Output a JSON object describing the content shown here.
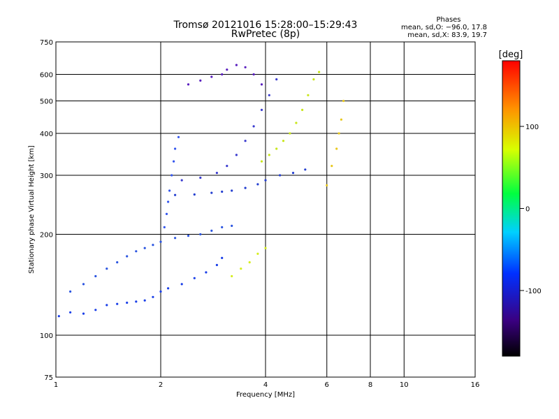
{
  "header": {
    "title_line1": "Tromsø 20121016 15:28:00–15:29:43",
    "title_line2": "RwPretec (8p)"
  },
  "stats": {
    "heading": "Phases",
    "line_o": "mean, sd,O: −96.0, 17.8",
    "line_x": "mean, sd,X: 83.9, 19.7"
  },
  "chart_data": {
    "type": "scatter",
    "xlabel": "Frequency [MHz]",
    "ylabel": "Stationary phase Virtual Height [km]",
    "x_scale": "log",
    "y_scale": "log",
    "xlim": [
      1,
      16
    ],
    "ylim": [
      75,
      750
    ],
    "x_ticks": [
      1,
      2,
      4,
      6,
      8,
      10,
      16
    ],
    "y_ticks": [
      75,
      100,
      200,
      300,
      400,
      500,
      600,
      750
    ],
    "grid": true,
    "colorbar": {
      "label": "[deg]",
      "range": [
        -180,
        180
      ],
      "ticks": [
        100,
        0,
        -100
      ]
    },
    "traces": [
      {
        "name": "o-low",
        "color": "#1a3fe8",
        "phase": -100,
        "points": [
          [
            1.02,
            114
          ],
          [
            1.1,
            117
          ],
          [
            1.2,
            116
          ],
          [
            1.3,
            119
          ],
          [
            1.4,
            123
          ],
          [
            1.5,
            124
          ],
          [
            1.6,
            125
          ],
          [
            1.7,
            126
          ],
          [
            1.8,
            127
          ],
          [
            1.9,
            130
          ],
          [
            2.0,
            135
          ],
          [
            2.1,
            138
          ],
          [
            2.3,
            142
          ],
          [
            2.5,
            148
          ],
          [
            2.7,
            154
          ],
          [
            2.9,
            162
          ],
          [
            3.0,
            170
          ]
        ]
      },
      {
        "name": "o-cloud-lower",
        "color": "#2b55e0",
        "phase": -105,
        "points": [
          [
            1.1,
            135
          ],
          [
            1.2,
            142
          ],
          [
            1.3,
            150
          ],
          [
            1.4,
            158
          ],
          [
            1.5,
            165
          ],
          [
            1.6,
            172
          ],
          [
            1.7,
            178
          ],
          [
            1.8,
            182
          ],
          [
            1.9,
            186
          ],
          [
            2.0,
            190
          ],
          [
            2.2,
            195
          ],
          [
            2.4,
            198
          ],
          [
            2.6,
            200
          ],
          [
            2.8,
            205
          ],
          [
            3.0,
            210
          ],
          [
            3.2,
            212
          ]
        ]
      },
      {
        "name": "o-vertical-2mhz",
        "color": "#3355ee",
        "phase": -110,
        "points": [
          [
            2.05,
            210
          ],
          [
            2.08,
            230
          ],
          [
            2.1,
            250
          ],
          [
            2.12,
            270
          ],
          [
            2.15,
            300
          ],
          [
            2.18,
            330
          ],
          [
            2.2,
            360
          ],
          [
            2.25,
            390
          ]
        ]
      },
      {
        "name": "o-mid",
        "color": "#2540d0",
        "phase": -112,
        "points": [
          [
            2.2,
            262
          ],
          [
            2.5,
            263
          ],
          [
            2.8,
            266
          ],
          [
            3.0,
            268
          ],
          [
            3.2,
            270
          ],
          [
            3.5,
            275
          ],
          [
            3.8,
            282
          ],
          [
            4.0,
            290
          ],
          [
            4.4,
            300
          ],
          [
            4.8,
            305
          ],
          [
            5.2,
            312
          ]
        ]
      },
      {
        "name": "o-mid-upper",
        "color": "#3b3ccf",
        "phase": -120,
        "points": [
          [
            2.3,
            290
          ],
          [
            2.6,
            295
          ],
          [
            2.9,
            305
          ],
          [
            3.1,
            320
          ],
          [
            3.3,
            345
          ],
          [
            3.5,
            380
          ],
          [
            3.7,
            420
          ],
          [
            3.9,
            470
          ],
          [
            4.1,
            520
          ],
          [
            4.3,
            580
          ]
        ]
      },
      {
        "name": "o-top-violet",
        "color": "#5a1fbf",
        "phase": -135,
        "points": [
          [
            2.4,
            560
          ],
          [
            2.6,
            575
          ],
          [
            2.8,
            590
          ],
          [
            3.0,
            600
          ],
          [
            3.1,
            620
          ],
          [
            3.3,
            640
          ],
          [
            3.5,
            630
          ],
          [
            3.7,
            600
          ],
          [
            3.9,
            560
          ]
        ]
      },
      {
        "name": "x-yellow",
        "color": "#c8e61a",
        "phase": 95,
        "points": [
          [
            3.9,
            330
          ],
          [
            4.1,
            345
          ],
          [
            4.3,
            360
          ],
          [
            4.5,
            380
          ],
          [
            4.7,
            400
          ],
          [
            4.9,
            430
          ],
          [
            5.1,
            470
          ],
          [
            5.3,
            520
          ],
          [
            5.5,
            580
          ],
          [
            5.7,
            610
          ]
        ]
      },
      {
        "name": "x-yellow-lower",
        "color": "#d6ee20",
        "phase": 100,
        "points": [
          [
            3.2,
            150
          ],
          [
            3.4,
            158
          ],
          [
            3.6,
            165
          ],
          [
            3.8,
            175
          ],
          [
            4.0,
            182
          ]
        ]
      },
      {
        "name": "x-high",
        "color": "#e8c81e",
        "phase": 110,
        "points": [
          [
            6.0,
            280
          ],
          [
            6.2,
            320
          ],
          [
            6.4,
            360
          ],
          [
            6.5,
            400
          ],
          [
            6.6,
            440
          ],
          [
            6.7,
            500
          ]
        ]
      }
    ]
  }
}
